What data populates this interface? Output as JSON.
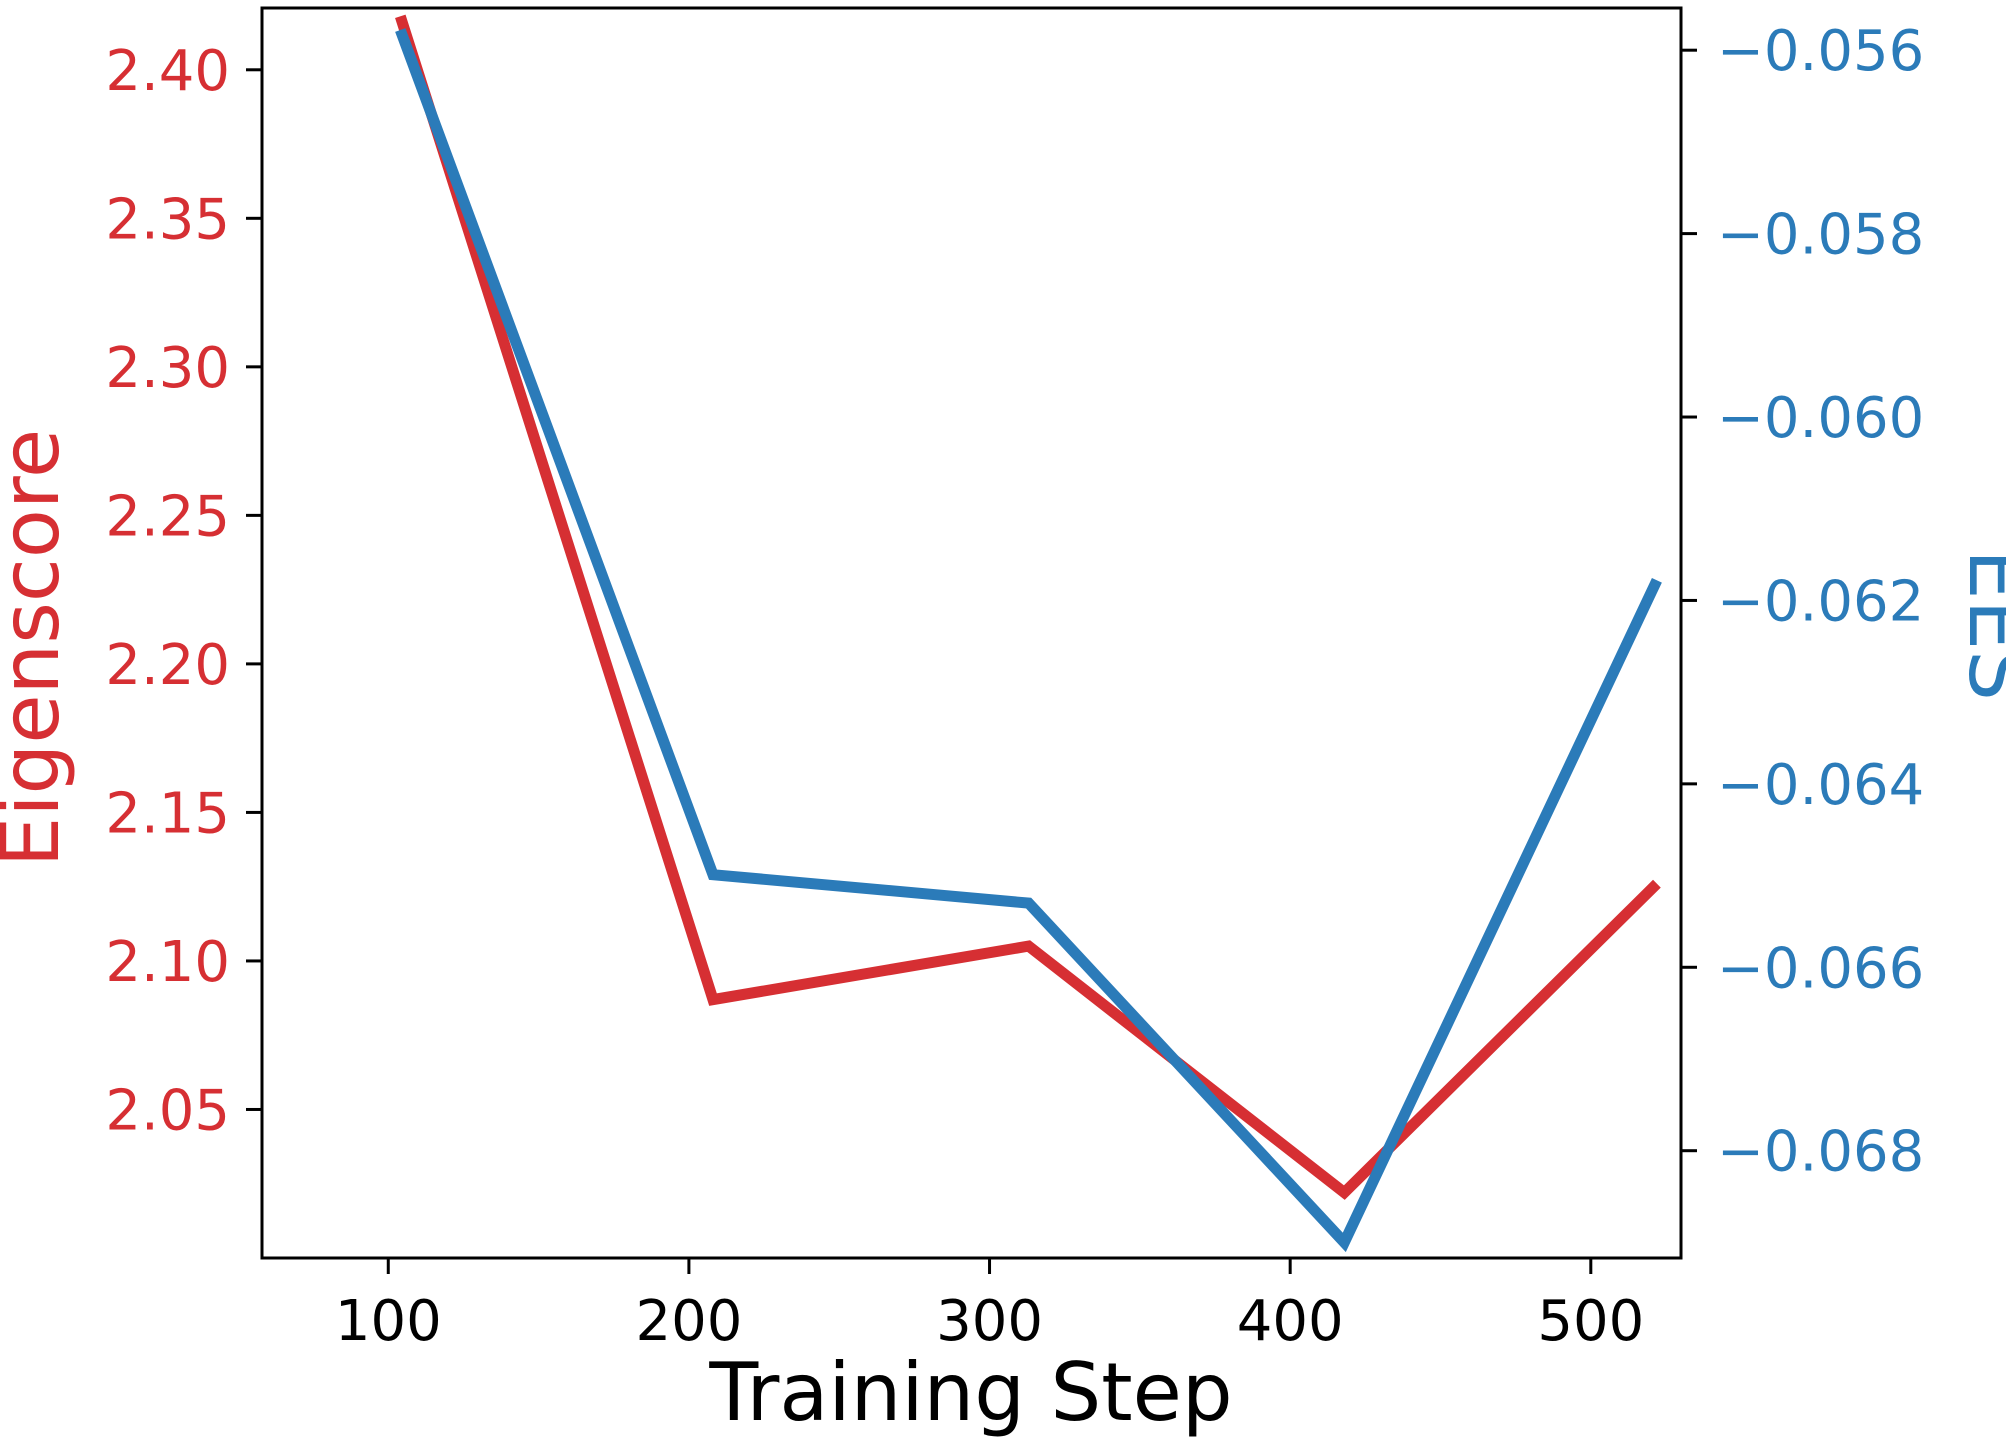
{
  "chart_data": {
    "type": "line",
    "xlabel": "Training Step",
    "ylabel_left": "Eigenscore",
    "ylabel_right": "EES",
    "xlim": [
      58,
      530
    ],
    "ylim_left": [
      2.0,
      2.4208
    ],
    "ylim_right": [
      -0.06917,
      -0.05554
    ],
    "x_ticks": [
      100,
      200,
      300,
      400,
      500
    ],
    "y_left_ticks": [
      2.05,
      2.1,
      2.15,
      2.2,
      2.25,
      2.3,
      2.35,
      2.4
    ],
    "y_right_ticks": [
      -0.068,
      -0.066,
      -0.064,
      -0.062,
      -0.06,
      -0.058,
      -0.056
    ],
    "y_left_tick_labels": [
      "2.05",
      "2.10",
      "2.15",
      "2.20",
      "2.25",
      "2.30",
      "2.35",
      "2.40"
    ],
    "y_right_tick_labels": [
      "−0.068",
      "−0.066",
      "−0.064",
      "−0.062",
      "−0.060",
      "−0.058",
      "−0.056"
    ],
    "grid": false,
    "series": [
      {
        "axis": "left",
        "color": "#d62f33",
        "x": [
          104,
          208,
          313,
          418,
          522
        ],
        "values": [
          2.418,
          2.087,
          2.105,
          2.022,
          2.126
        ]
      },
      {
        "axis": "right",
        "color": "#2b7bb9",
        "x": [
          104,
          208,
          313,
          418,
          522
        ],
        "values": [
          -0.05578,
          -0.06499,
          -0.0653,
          -0.069,
          -0.06178
        ]
      }
    ]
  }
}
